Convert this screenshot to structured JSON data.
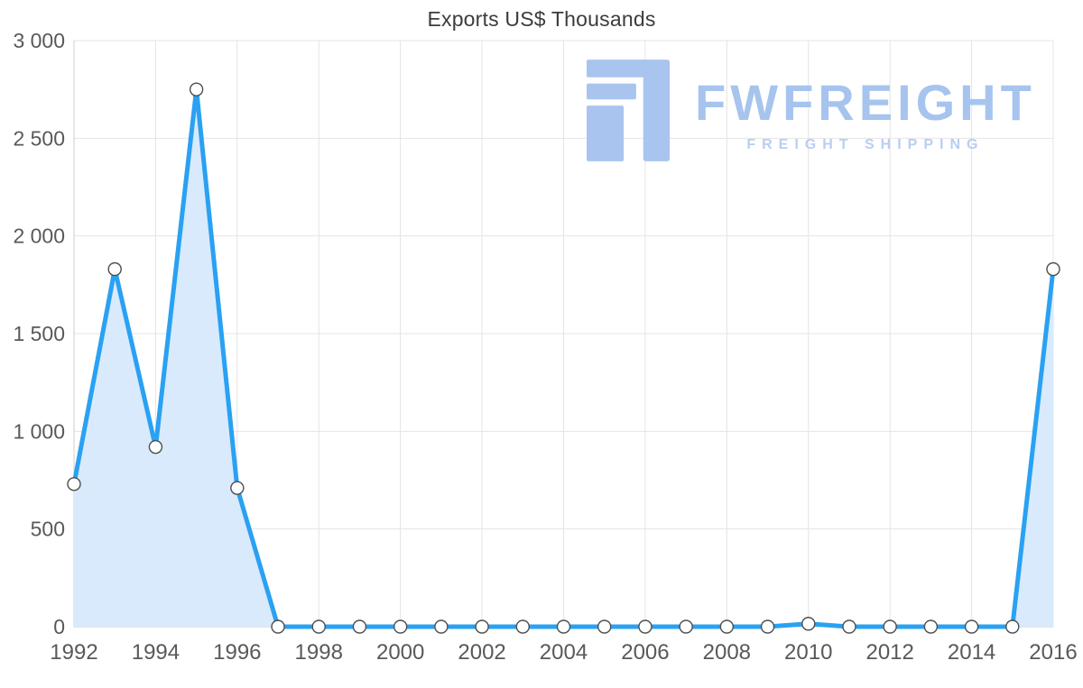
{
  "title": "Exports US$ Thousands",
  "watermark": {
    "brand": "FWFREIGHT",
    "tagline": "FREIGHT SHIPPING",
    "brand_color": "#a6c4ee",
    "tagline_color": "#b9cef2",
    "logo_color": "#a9c4ef",
    "logo_icon": "fwfreight-logo"
  },
  "chart_data": {
    "type": "area",
    "title": "Exports US$ Thousands",
    "xlabel": "",
    "ylabel": "",
    "x": [
      1992,
      1993,
      1994,
      1995,
      1996,
      1997,
      1998,
      1999,
      2000,
      2001,
      2002,
      2003,
      2004,
      2005,
      2006,
      2007,
      2008,
      2009,
      2010,
      2011,
      2012,
      2013,
      2014,
      2015,
      2016
    ],
    "values": [
      730,
      1830,
      920,
      2750,
      710,
      0,
      0,
      0,
      0,
      0,
      0,
      0,
      0,
      0,
      0,
      0,
      0,
      0,
      15,
      0,
      0,
      0,
      0,
      0,
      1830
    ],
    "ylim": [
      0,
      3000
    ],
    "y_ticks": [
      0,
      500,
      1000,
      1500,
      2000,
      2500,
      3000
    ],
    "y_tick_labels": [
      "0",
      "500",
      "1 000",
      "1 500",
      "2 000",
      "2 500",
      "3 000"
    ],
    "x_tick_labels": [
      "1992",
      "1994",
      "1996",
      "1998",
      "2000",
      "2002",
      "2004",
      "2006",
      "2008",
      "2010",
      "2012",
      "2014",
      "2016"
    ],
    "grid": true,
    "legend": "none",
    "line_color": "#2aa1f2",
    "fill_color": "#d9eafc",
    "marker_fill": "#ffffff",
    "marker_stroke": "#4d4d4d",
    "grid_color": "#e4e4e4",
    "axis_color": "#c7c7c7",
    "tick_label_color": "#595959"
  }
}
